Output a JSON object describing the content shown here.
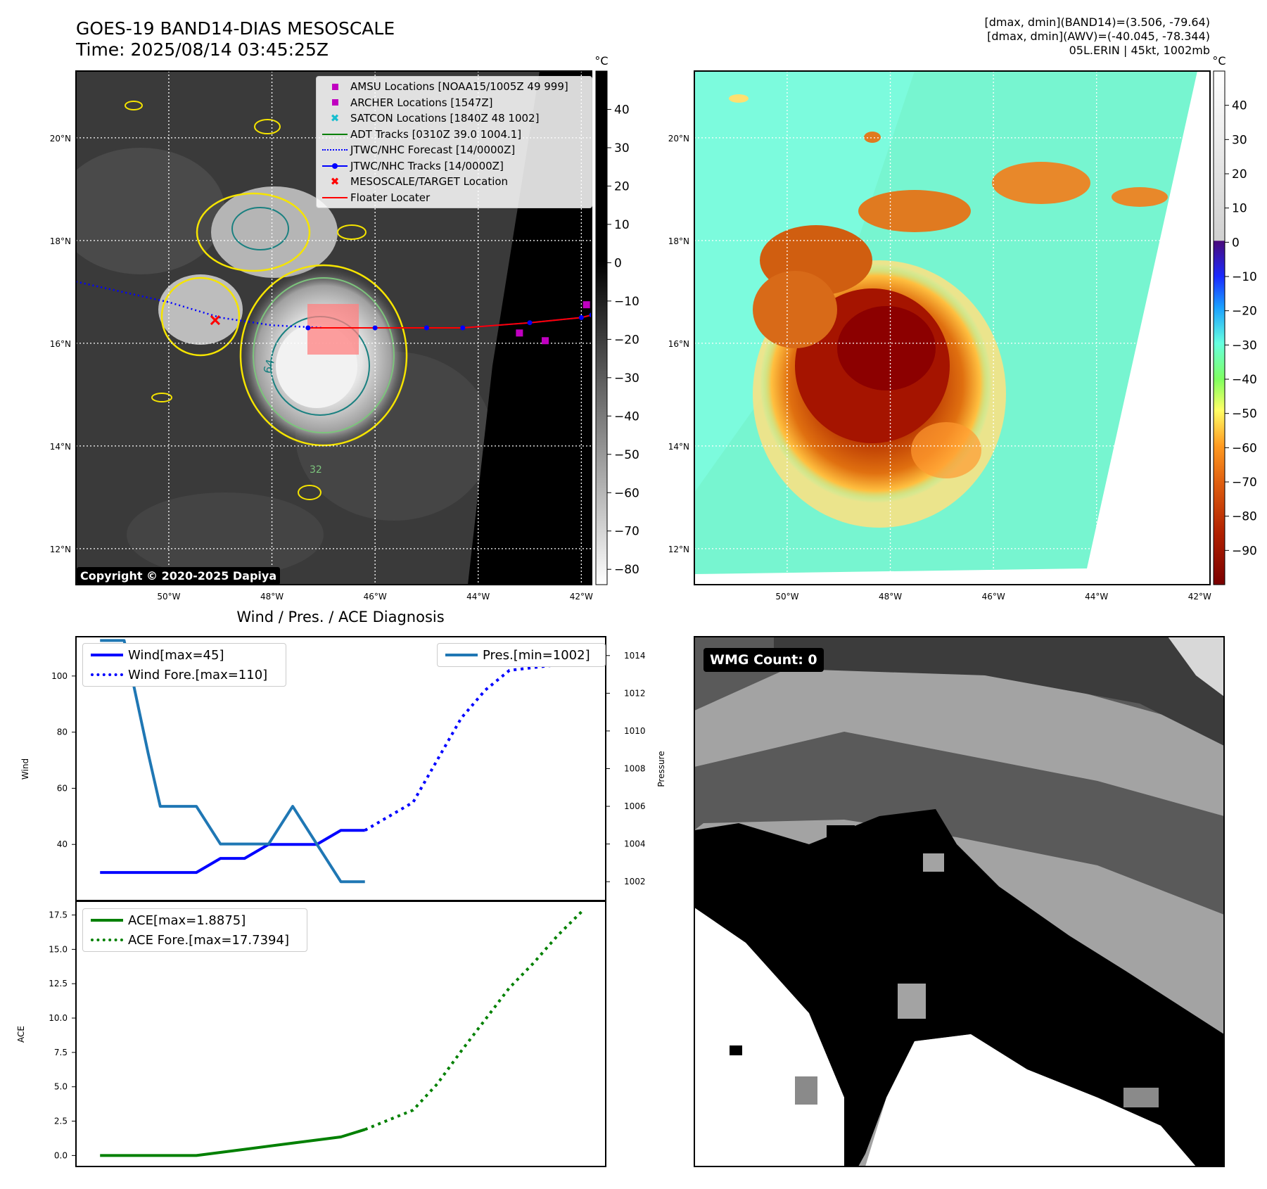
{
  "header": {
    "title_line1": "GOES-19 BAND14-DIAS MESOSCALE",
    "title_line2": "Time: 2025/08/14 03:45:25Z",
    "info_line1": "[dmax, dmin](BAND14)=(3.506, -79.64)",
    "info_line2": "[dmax, dmin](AWV)=(-40.045, -78.344)",
    "info_line3": "05L.ERIN | 45kt, 1002mb"
  },
  "map": {
    "lat_labels": [
      "20°N",
      "18°N",
      "16°N",
      "14°N",
      "12°N"
    ],
    "lat_values": [
      20,
      18,
      16,
      14,
      12
    ],
    "lon_labels": [
      "50°W",
      "48°W",
      "46°W",
      "44°W",
      "42°W"
    ],
    "lon_values": [
      -50,
      -48,
      -46,
      -44,
      -42
    ],
    "extent": {
      "lon": [
        -51.8,
        -41.8
      ],
      "lat": [
        11.3,
        21.3
      ]
    },
    "copyright": "Copyright © 2020-2025 Dapiya",
    "contour_label_64": "64",
    "contour_label_32": "32"
  },
  "ir_colorbar": {
    "unit": "°C",
    "ticks": [
      "40",
      "30",
      "20",
      "10",
      "0",
      "−10",
      "−20",
      "−30",
      "−40",
      "−50",
      "−60",
      "−70",
      "−80"
    ],
    "tick_values": [
      40,
      30,
      20,
      10,
      0,
      -10,
      -20,
      -30,
      -40,
      -50,
      -60,
      -70,
      -80
    ],
    "range": [
      -84,
      50
    ]
  },
  "dias_colorbar": {
    "unit": "°C",
    "ticks": [
      "40",
      "30",
      "20",
      "10",
      "0",
      "−10",
      "−20",
      "−30",
      "−40",
      "−50",
      "−60",
      "−70",
      "−80",
      "−90"
    ],
    "tick_values": [
      40,
      30,
      20,
      10,
      0,
      -10,
      -20,
      -30,
      -40,
      -50,
      -60,
      -70,
      -80,
      -90
    ],
    "range": [
      -100,
      50
    ]
  },
  "legend": {
    "items": [
      {
        "label": "AMSU Locations [NOAA15/1005Z 49 999]",
        "symbol": "square",
        "color": "#c000c0"
      },
      {
        "label": "ARCHER Locations [1547Z]",
        "symbol": "square",
        "color": "#c000c0"
      },
      {
        "label": "SATCON Locations [1840Z 48 1002]",
        "symbol": "x",
        "color": "#17becf"
      },
      {
        "label": "ADT Tracks [0310Z 39.0 1004.1]",
        "symbol": "line",
        "color": "#008000"
      },
      {
        "label": "JTWC/NHC Forecast [14/0000Z]",
        "symbol": "dotted",
        "color": "#0000ff"
      },
      {
        "label": "JTWC/NHC Tracks [14/0000Z]",
        "symbol": "line-dot",
        "color": "#0000ff"
      },
      {
        "label": "MESOSCALE/TARGET Location",
        "symbol": "x",
        "color": "#ff0000"
      },
      {
        "label": "Floater Locater",
        "symbol": "line",
        "color": "#ff0000"
      }
    ]
  },
  "tracks": {
    "forecast": [
      [
        -51.8,
        17.2
      ],
      [
        -50,
        16.8
      ],
      [
        -49,
        16.5
      ],
      [
        -48,
        16.35
      ],
      [
        -47,
        16.3
      ]
    ],
    "best_track": [
      [
        -47.3,
        16.3
      ],
      [
        -46,
        16.3
      ],
      [
        -45,
        16.3
      ],
      [
        -44.3,
        16.3
      ],
      [
        -43,
        16.4
      ],
      [
        -42,
        16.5
      ],
      [
        -41.8,
        16.55
      ]
    ],
    "target": [
      -49.1,
      16.45
    ],
    "amsu": [
      [
        -41.9,
        16.75
      ]
    ],
    "archer": [
      [
        -43.2,
        16.2
      ],
      [
        -42.7,
        16.05
      ]
    ]
  },
  "chart_data": [
    {
      "type": "line",
      "title": "Wind / Pres. / ACE Diagnosis",
      "ylabel": "Wind",
      "y2label": "Pressure",
      "ylim": [
        20,
        114
      ],
      "y2lim": [
        1001.0,
        1015.0
      ],
      "yticks": [
        40,
        60,
        80,
        100
      ],
      "y2ticks": [
        1002,
        1004,
        1006,
        1008,
        1010,
        1012,
        1014
      ],
      "legend_left": [
        "Wind[max=45]",
        "Wind Fore.[max=110]"
      ],
      "legend_right": "Pres.[min=1002]",
      "series": [
        {
          "name": "Wind[max=45]",
          "axis": "left",
          "style": "solid",
          "color": "#0000ff",
          "x": [
            0,
            1,
            2,
            3,
            4,
            5,
            6,
            7,
            8,
            9,
            10,
            11
          ],
          "y": [
            30,
            30,
            30,
            30,
            30,
            35,
            35,
            40,
            40,
            40,
            45,
            45
          ]
        },
        {
          "name": "Wind Fore.[max=110]",
          "axis": "left",
          "style": "dotted",
          "color": "#0000ff",
          "x": [
            11,
            13,
            14,
            15,
            16,
            17,
            18,
            19,
            20
          ],
          "y": [
            45,
            55,
            70,
            85,
            95,
            102,
            103,
            104,
            106
          ]
        },
        {
          "name": "Pres.[min=1002]",
          "axis": "right",
          "style": "solid",
          "color": "#1f77b4",
          "x": [
            0,
            0.5,
            1,
            2,
            2.5,
            3,
            4,
            5,
            6,
            7,
            8,
            9,
            10,
            11
          ],
          "y": [
            1014.8,
            1014.8,
            1014.8,
            1008.8,
            1006.0,
            1006.0,
            1006.0,
            1004.0,
            1004.0,
            1004.0,
            1006.0,
            1004.0,
            1002.0,
            1002.0
          ]
        }
      ],
      "xlim": [
        -1,
        21
      ]
    },
    {
      "type": "line",
      "ylabel": "ACE",
      "ylim": [
        -0.8,
        18.5
      ],
      "yticks": [
        0.0,
        2.5,
        5.0,
        7.5,
        10.0,
        12.5,
        15.0,
        17.5
      ],
      "ytick_labels": [
        "0.0",
        "2.5",
        "5.0",
        "7.5",
        "10.0",
        "12.5",
        "15.0",
        "17.5"
      ],
      "legend": [
        "ACE[max=1.8875]",
        "ACE Fore.[max=17.7394]"
      ],
      "series": [
        {
          "name": "ACE[max=1.8875]",
          "style": "solid",
          "color": "#008000",
          "x": [
            0,
            2,
            4,
            6,
            8,
            10,
            11
          ],
          "y": [
            0,
            0,
            0,
            0.45,
            0.9,
            1.35,
            1.89
          ]
        },
        {
          "name": "ACE Fore.[max=17.7394]",
          "style": "dotted",
          "color": "#008000",
          "x": [
            11,
            13,
            14,
            15,
            16,
            17,
            18,
            19,
            20
          ],
          "y": [
            1.89,
            3.3,
            5.2,
            7.6,
            9.9,
            12.2,
            14.0,
            16.0,
            17.74
          ]
        }
      ],
      "xlim": [
        -1,
        21
      ]
    }
  ],
  "wmg": {
    "label": "WMG Count: 0"
  }
}
